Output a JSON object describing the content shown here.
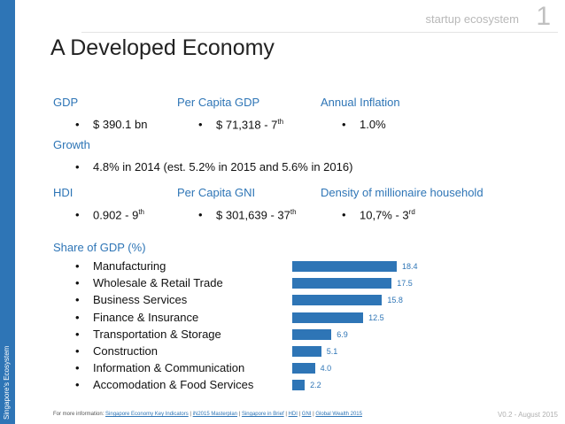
{
  "header": {
    "topic": "startup ecosystem",
    "page_number": "1"
  },
  "title": "A Developed Economy",
  "sidebar": {
    "label": "Singapore's Ecosystem"
  },
  "stats": {
    "gdp": {
      "label": "GDP",
      "value": "$ 390.1 bn"
    },
    "per_capita_gdp": {
      "label": "Per Capita GDP",
      "value": "$ 71,318 - 7",
      "sup": "th"
    },
    "annual_inflation": {
      "label": "Annual Inflation",
      "value": "1.0%"
    },
    "growth": {
      "label": "Growth",
      "value": "4.8% in 2014 (est. 5.2% in 2015 and 5.6% in 2016)"
    },
    "hdi": {
      "label": "HDI",
      "value": "0.902 - 9",
      "sup": "th"
    },
    "per_capita_gni": {
      "label": "Per Capita GNI",
      "value": "$ 301,639 - 37",
      "sup": "th"
    },
    "millionaire_density": {
      "label": "Density of millionaire household",
      "value": "10,7% - 3",
      "sup": "rd"
    }
  },
  "bullet": "•",
  "share_label": "Share of GDP (%)",
  "chart_data": {
    "type": "bar",
    "title": "Share of GDP (%)",
    "orientation": "horizontal",
    "categories": [
      "Manufacturing",
      "Wholesale & Retail Trade",
      "Business Services",
      "Finance & Insurance",
      "Transportation & Storage",
      "Construction",
      "Information & Communication",
      "Accomodation & Food Services"
    ],
    "values": [
      18.4,
      17.5,
      15.8,
      12.5,
      6.9,
      5.1,
      4.0,
      2.2
    ],
    "value_labels": [
      "18.4",
      "17.5",
      "15.8",
      "12.5",
      "6.9",
      "5.1",
      "4.0",
      "2.2"
    ],
    "xlim": [
      0,
      18.4
    ],
    "color": "#2e75b6"
  },
  "footer": {
    "prefix": "For more information:",
    "links": [
      "Singapore Economy Key Indicators",
      "iN2015 Masterplan",
      "Singapore in Brief",
      "HDI",
      "GNI",
      "Global Wealth 2015"
    ],
    "separator": "|",
    "version": "V0.2 - August 2015"
  },
  "colors": {
    "accent": "#2e75b6"
  }
}
